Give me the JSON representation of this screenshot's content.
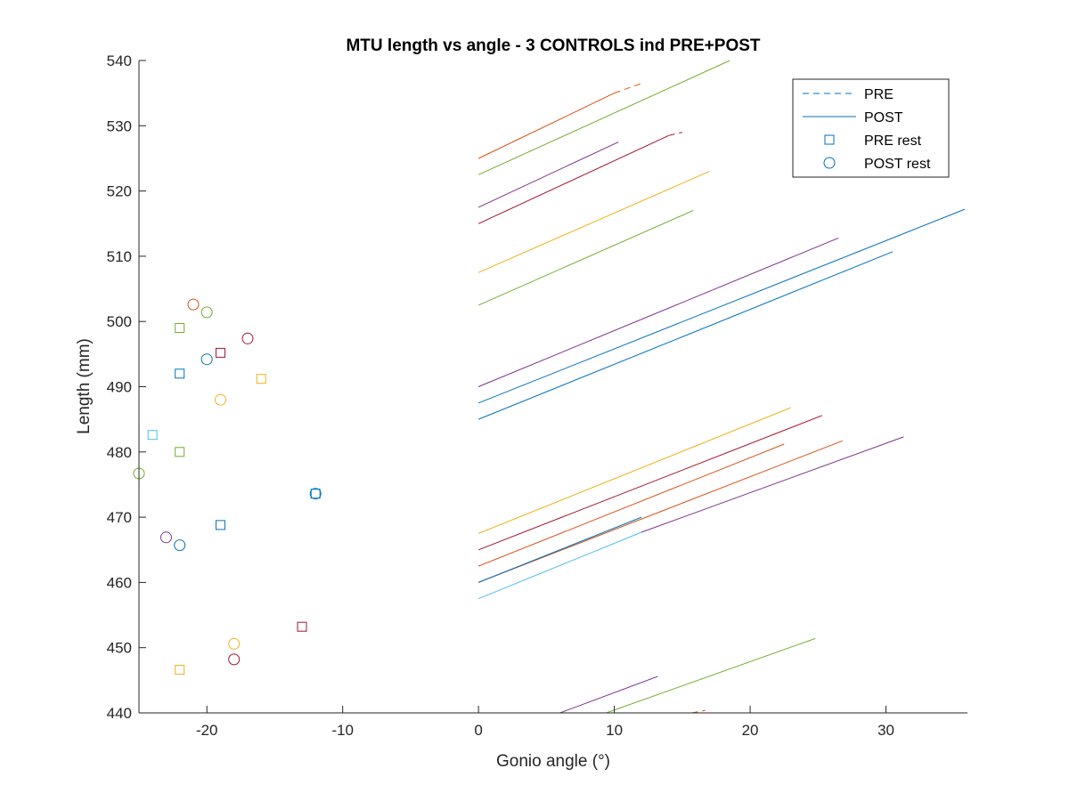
{
  "chart_data": {
    "type": "line",
    "title": "MTU length vs angle - 3 CONTROLS ind PRE+POST",
    "xlabel": "Gonio angle (°)",
    "ylabel": "Length (mm)",
    "xlim": [
      -25,
      36
    ],
    "ylim": [
      440,
      540
    ],
    "xticks": [
      -20,
      -10,
      0,
      10,
      20,
      30
    ],
    "xtick_labels": [
      "-20",
      "-10",
      "0",
      "10",
      "20",
      "30"
    ],
    "yticks": [
      440,
      450,
      460,
      470,
      480,
      490,
      500,
      510,
      520,
      530,
      540
    ],
    "ytick_labels": [
      "440",
      "450",
      "460",
      "470",
      "480",
      "490",
      "500",
      "510",
      "520",
      "530",
      "540"
    ],
    "grid": false,
    "legend": {
      "placement": "top-right",
      "entries": [
        {
          "label": "PRE",
          "marker": "dashed-line",
          "color": "#0072BD"
        },
        {
          "label": "POST",
          "marker": "solid-line",
          "color": "#0072BD"
        },
        {
          "label": "PRE rest",
          "marker": "square",
          "color": "#0072BD"
        },
        {
          "label": "POST rest",
          "marker": "circle",
          "color": "#0072BD"
        }
      ]
    },
    "lines": [
      {
        "color": "#D95319",
        "style": "solid",
        "x": [
          0,
          10
        ],
        "y": [
          525,
          535
        ]
      },
      {
        "color": "#D95319",
        "style": "dashed",
        "x": [
          10,
          12
        ],
        "y": [
          535,
          536.5
        ]
      },
      {
        "color": "#77AC30",
        "style": "solid",
        "x": [
          0,
          18.5
        ],
        "y": [
          522.5,
          540
        ]
      },
      {
        "color": "#7E2F8E",
        "style": "solid",
        "x": [
          0,
          10.3
        ],
        "y": [
          517.5,
          527.5
        ]
      },
      {
        "color": "#A2142F",
        "style": "solid",
        "x": [
          0,
          14
        ],
        "y": [
          515,
          528.5
        ]
      },
      {
        "color": "#A2142F",
        "style": "dashed",
        "x": [
          14,
          15
        ],
        "y": [
          528.5,
          529
        ]
      },
      {
        "color": "#EDB120",
        "style": "solid",
        "x": [
          0,
          17
        ],
        "y": [
          507.5,
          523
        ]
      },
      {
        "color": "#77AC30",
        "style": "solid",
        "x": [
          0,
          15.8
        ],
        "y": [
          502.5,
          517
        ]
      },
      {
        "color": "#7E2F8E",
        "style": "solid",
        "x": [
          0,
          26.5
        ],
        "y": [
          490,
          512.8
        ]
      },
      {
        "color": "#0072BD",
        "style": "solid",
        "x": [
          0,
          35.8
        ],
        "y": [
          487.5,
          517.2
        ]
      },
      {
        "color": "#0072BD",
        "style": "solid",
        "x": [
          0,
          30.5
        ],
        "y": [
          485,
          510.7
        ]
      },
      {
        "color": "#EDB120",
        "style": "solid",
        "x": [
          0,
          23
        ],
        "y": [
          467.5,
          486.8
        ]
      },
      {
        "color": "#A2142F",
        "style": "solid",
        "x": [
          0,
          25.3
        ],
        "y": [
          465,
          485.6
        ]
      },
      {
        "color": "#D95319",
        "style": "solid",
        "x": [
          0,
          22.5
        ],
        "y": [
          462.5,
          481.2
        ]
      },
      {
        "color": "#D95319",
        "style": "solid",
        "x": [
          0,
          26.8
        ],
        "y": [
          460,
          481.7
        ]
      },
      {
        "color": "#0072BD",
        "style": "solid",
        "x": [
          0,
          12
        ],
        "y": [
          460,
          470
        ]
      },
      {
        "color": "#4DBEEE",
        "style": "solid",
        "x": [
          0,
          12
        ],
        "y": [
          457.5,
          467.7
        ]
      },
      {
        "color": "#7E2F8E",
        "style": "solid",
        "x": [
          12,
          31.3
        ],
        "y": [
          467.7,
          482.3
        ]
      },
      {
        "color": "#7E2F8E",
        "style": "solid",
        "x": [
          6,
          13.2
        ],
        "y": [
          440,
          445.6
        ]
      },
      {
        "color": "#77AC30",
        "style": "solid",
        "x": [
          9.4,
          24.8
        ],
        "y": [
          440,
          451.4
        ]
      },
      {
        "color": "#D95319",
        "style": "dashed",
        "x": [
          15.7,
          16.7
        ],
        "y": [
          440,
          440.4
        ]
      }
    ],
    "rest_points": [
      {
        "marker": "square",
        "color": "#77AC30",
        "x": -22,
        "y": 499
      },
      {
        "marker": "square",
        "color": "#0072BD",
        "x": -22,
        "y": 492
      },
      {
        "marker": "square",
        "color": "#A2142F",
        "x": -19,
        "y": 495.2
      },
      {
        "marker": "square",
        "color": "#EDB120",
        "x": -16,
        "y": 491.2
      },
      {
        "marker": "square",
        "color": "#4DBEEE",
        "x": -24,
        "y": 482.6
      },
      {
        "marker": "square",
        "color": "#77AC30",
        "x": -22,
        "y": 480
      },
      {
        "marker": "square",
        "color": "#0072BD",
        "x": -12,
        "y": 473.6
      },
      {
        "marker": "square",
        "color": "#0072BD",
        "x": -19,
        "y": 468.8
      },
      {
        "marker": "square",
        "color": "#A2142F",
        "x": -13,
        "y": 453.2
      },
      {
        "marker": "square",
        "color": "#EDB120",
        "x": -22,
        "y": 446.6
      },
      {
        "marker": "circle",
        "color": "#D95319",
        "x": -21,
        "y": 502.6
      },
      {
        "marker": "circle",
        "color": "#77AC30",
        "x": -20,
        "y": 501.4
      },
      {
        "marker": "circle",
        "color": "#A2142F",
        "x": -17,
        "y": 497.4
      },
      {
        "marker": "circle",
        "color": "#0072BD",
        "x": -20,
        "y": 494.2
      },
      {
        "marker": "circle",
        "color": "#EDB120",
        "x": -19,
        "y": 488
      },
      {
        "marker": "circle",
        "color": "#77AC30",
        "x": -25,
        "y": 476.7
      },
      {
        "marker": "circle",
        "color": "#0072BD",
        "x": -12,
        "y": 473.6
      },
      {
        "marker": "circle",
        "color": "#7E2F8E",
        "x": -23,
        "y": 466.9
      },
      {
        "marker": "circle",
        "color": "#0072BD",
        "x": -22,
        "y": 465.7
      },
      {
        "marker": "circle",
        "color": "#EDB120",
        "x": -18,
        "y": 450.6
      },
      {
        "marker": "circle",
        "color": "#A2142F",
        "x": -18,
        "y": 448.2
      }
    ]
  }
}
